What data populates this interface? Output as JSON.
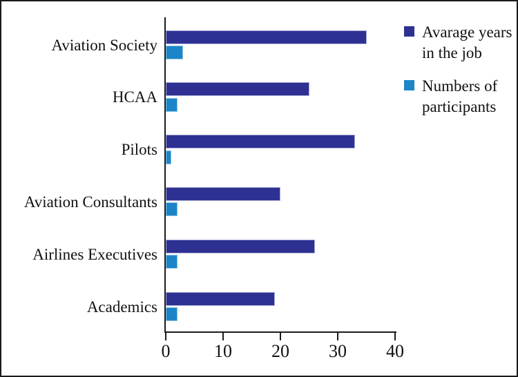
{
  "chart_data": {
    "type": "bar",
    "orientation": "horizontal",
    "title": "",
    "xlabel": "",
    "ylabel": "",
    "categories": [
      "Aviation Society",
      "HCAA",
      "Pilots",
      "Aviation Consultants",
      "Airlines Executives",
      "Academics"
    ],
    "series": [
      {
        "name": "Avarage years in the job",
        "color": "#2E3192",
        "values": [
          35,
          25,
          33,
          20,
          26,
          19
        ]
      },
      {
        "name": "Numbers of participants",
        "color": "#1C85C8",
        "values": [
          3,
          2,
          1,
          2,
          2,
          2
        ]
      }
    ],
    "xlim": [
      0,
      40
    ],
    "xticks": [
      0,
      10,
      20,
      30,
      40
    ],
    "grid": false,
    "legend_position": "top-right",
    "legend": [
      {
        "label": "Avarage years in the job",
        "lines": [
          "Avarage years",
          "in the job"
        ],
        "color": "#2E3192"
      },
      {
        "label": "Numbers of participants",
        "lines": [
          "Numbers of",
          "participants"
        ],
        "color": "#1C85C8"
      }
    ]
  }
}
